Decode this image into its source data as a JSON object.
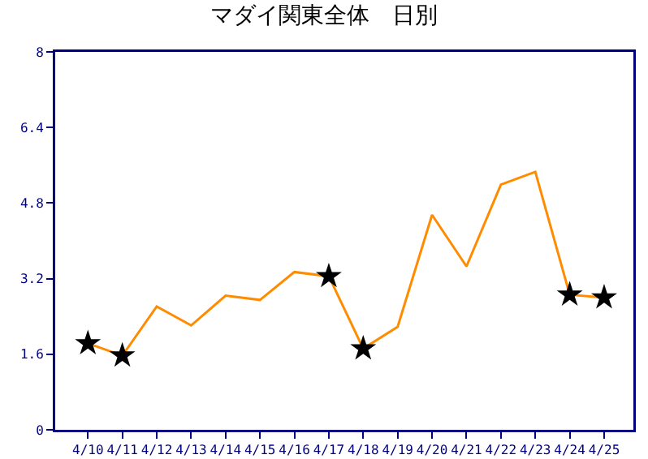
{
  "chart_data": {
    "type": "line",
    "title": "マダイ関東全体　日別",
    "categories": [
      "4/10",
      "4/11",
      "4/12",
      "4/13",
      "4/14",
      "4/15",
      "4/16",
      "4/17",
      "4/18",
      "4/19",
      "4/20",
      "4/21",
      "4/22",
      "4/23",
      "4/24",
      "4/25"
    ],
    "series": [
      {
        "color": "#ff8c00",
        "marker": "none",
        "values": [
          1.83,
          1.57,
          2.61,
          2.21,
          2.84,
          2.75,
          3.34,
          3.25,
          1.72,
          2.18,
          4.55,
          3.46,
          5.19,
          5.46,
          2.86,
          2.8
        ]
      },
      {
        "type": "scatter",
        "color": "#000000",
        "marker": "star",
        "values": [
          1.83,
          1.57,
          null,
          null,
          null,
          null,
          null,
          3.25,
          1.72,
          null,
          null,
          null,
          null,
          null,
          2.86,
          2.8
        ]
      }
    ],
    "ylim": [
      0,
      8
    ],
    "yticks": [
      0,
      1.6,
      3.2,
      4.8,
      6.4,
      8
    ],
    "grid": false,
    "legend": false
  }
}
